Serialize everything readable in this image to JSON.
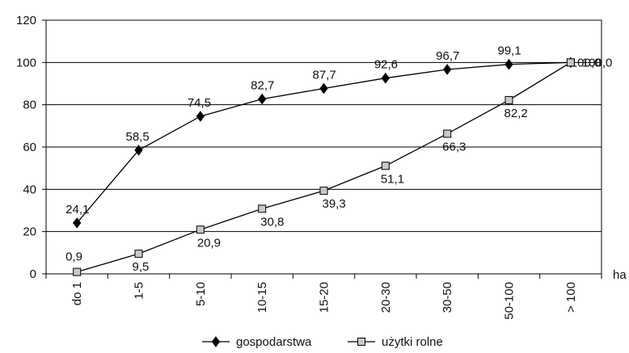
{
  "chart_data": {
    "type": "line",
    "categories": [
      "do 1",
      "1-5",
      "5-10",
      "10-15",
      "15-20",
      "20-30",
      "30-50",
      "50-100",
      "> 100"
    ],
    "ylim": [
      0,
      120
    ],
    "yticks": [
      "0",
      "20",
      "40",
      "60",
      "80",
      "100",
      "120"
    ],
    "xlabel": "ha",
    "grid": "horizontal",
    "legend_position": "bottom",
    "series": [
      {
        "name": "gospodarstwa",
        "marker": "diamond",
        "color": "#000000",
        "values": [
          24.1,
          58.5,
          74.5,
          82.7,
          87.7,
          92.6,
          96.7,
          99.1,
          100.0
        ],
        "labels": [
          "24,1",
          "58,5",
          "74,5",
          "82,7",
          "87,7",
          "92,6",
          "96,7",
          "99,1",
          "100,0"
        ]
      },
      {
        "name": "użytki rolne",
        "marker": "square",
        "color": "#000000",
        "fill": "#c8c8c8",
        "values": [
          0.9,
          9.5,
          20.9,
          30.8,
          39.3,
          51.1,
          66.3,
          82.2,
          100.0
        ],
        "labels": [
          "0,9",
          "9,5",
          "20,9",
          "30,8",
          "39,3",
          "51,1",
          "66,3",
          "82,2",
          "100,0"
        ]
      }
    ]
  }
}
